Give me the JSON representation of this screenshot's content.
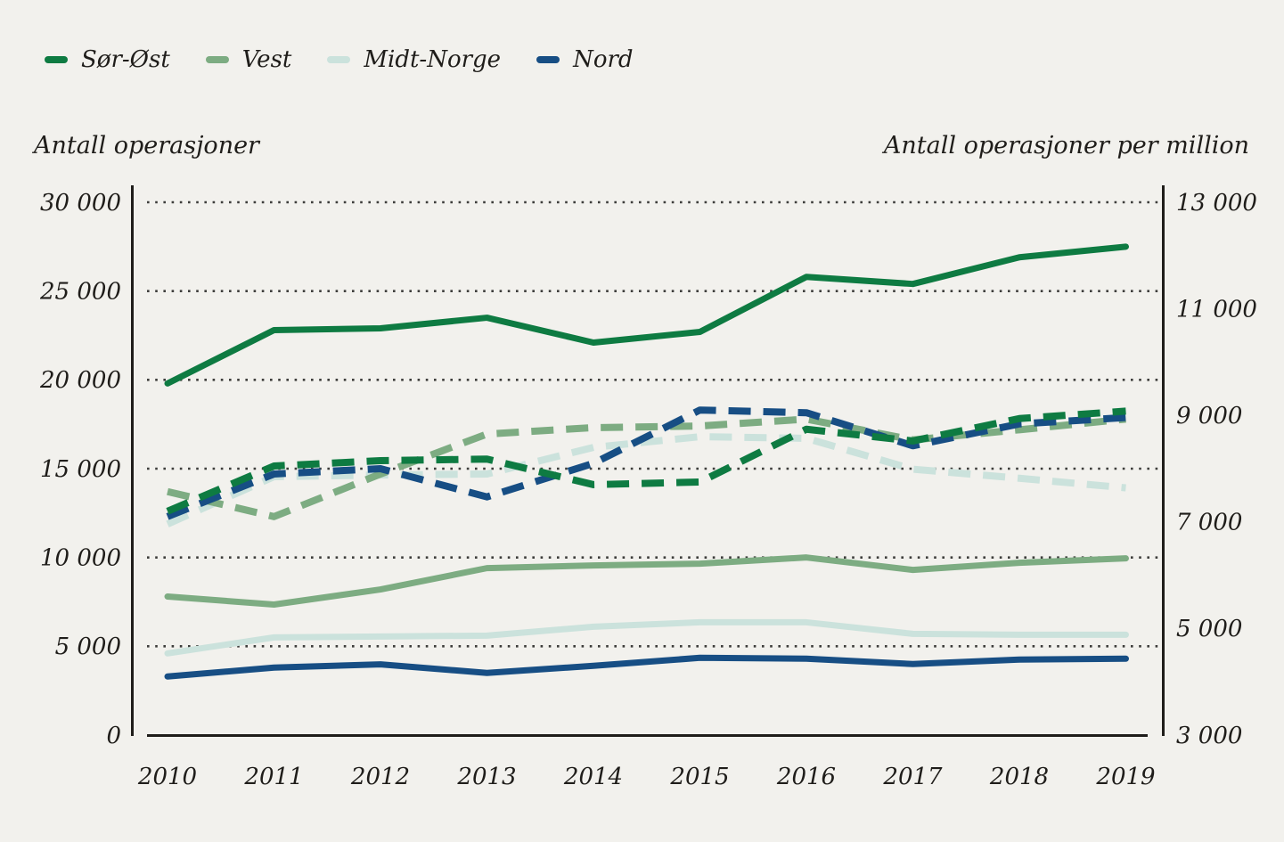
{
  "page": {
    "background_color": "#f2f1ed",
    "text_color": "#1f1d1a",
    "gridline_color": "#3d3d3b",
    "axis_color": "#1f1d1a"
  },
  "legend": {
    "items": [
      {
        "label": "Sør-Øst",
        "color": "#0e7b42"
      },
      {
        "label": "Vest",
        "color": "#7dac82"
      },
      {
        "label": "Midt-Norge",
        "color": "#cbe2dc"
      },
      {
        "label": "Nord",
        "color": "#174e84"
      }
    ]
  },
  "left_axis": {
    "title": "Antall operasjoner",
    "tick_labels": [
      "30 000",
      "25 000",
      "20 000",
      "15 000",
      "10 000",
      "5 000",
      "0"
    ],
    "tick_values": [
      30000,
      25000,
      20000,
      15000,
      10000,
      5000,
      0
    ],
    "range": [
      0,
      30000
    ]
  },
  "right_axis": {
    "title": "Antall operasjoner per million",
    "tick_labels": [
      "13 000",
      "11 000",
      "9 000",
      "7 000",
      "5 000",
      "3 000"
    ],
    "tick_values": [
      13000,
      11000,
      9000,
      7000,
      5000,
      3000
    ],
    "range": [
      3000,
      13000
    ]
  },
  "chart_data": {
    "type": "line",
    "title": "",
    "xlabel": "",
    "ylabel_left": "Antall operasjoner",
    "ylabel_right": "Antall operasjoner per million",
    "grid": "dotted horizontal gridlines at left-axis ticks (30 000 … 5 000)",
    "legend_position": "top-left",
    "x": [
      2010,
      2011,
      2012,
      2013,
      2014,
      2015,
      2016,
      2017,
      2018,
      2019
    ],
    "series": [
      {
        "name": "Midt-Norge (per million)",
        "axis": "right",
        "line": "dashed",
        "color": "#cbe2dc",
        "values": [
          6960,
          7850,
          7880,
          7900,
          8400,
          8600,
          8570,
          7990,
          7820,
          7640
        ]
      },
      {
        "name": "Vest (per million)",
        "axis": "right",
        "line": "dashed",
        "color": "#7dac82",
        "values": [
          7570,
          7100,
          7900,
          8650,
          8770,
          8800,
          8930,
          8540,
          8730,
          8930
        ]
      },
      {
        "name": "Nord (per million)",
        "axis": "right",
        "line": "dashed",
        "color": "#174e84",
        "values": [
          7100,
          7900,
          8000,
          7470,
          8100,
          9100,
          9050,
          8430,
          8840,
          8960
        ]
      },
      {
        "name": "Sør-Øst (per million)",
        "axis": "right",
        "line": "dashed",
        "color": "#0e7b42",
        "values": [
          7200,
          8050,
          8150,
          8180,
          7700,
          7750,
          8740,
          8520,
          8940,
          9080
        ]
      },
      {
        "name": "Midt-Norge (antall)",
        "axis": "left",
        "line": "solid",
        "color": "#cbe2dc",
        "values": [
          4600,
          5500,
          5550,
          5600,
          6100,
          6350,
          6350,
          5700,
          5650,
          5650
        ]
      },
      {
        "name": "Vest (antall)",
        "axis": "left",
        "line": "solid",
        "color": "#7dac82",
        "values": [
          7800,
          7350,
          8200,
          9400,
          9550,
          9650,
          10000,
          9300,
          9700,
          9950
        ]
      },
      {
        "name": "Nord (antall)",
        "axis": "left",
        "line": "solid",
        "color": "#174e84",
        "values": [
          3300,
          3800,
          3980,
          3500,
          3900,
          4350,
          4300,
          4000,
          4250,
          4300
        ]
      },
      {
        "name": "Sør-Øst (antall)",
        "axis": "left",
        "line": "solid",
        "color": "#0e7b42",
        "values": [
          19800,
          22800,
          22900,
          23500,
          22100,
          22700,
          25800,
          25400,
          26900,
          27500
        ]
      }
    ]
  }
}
